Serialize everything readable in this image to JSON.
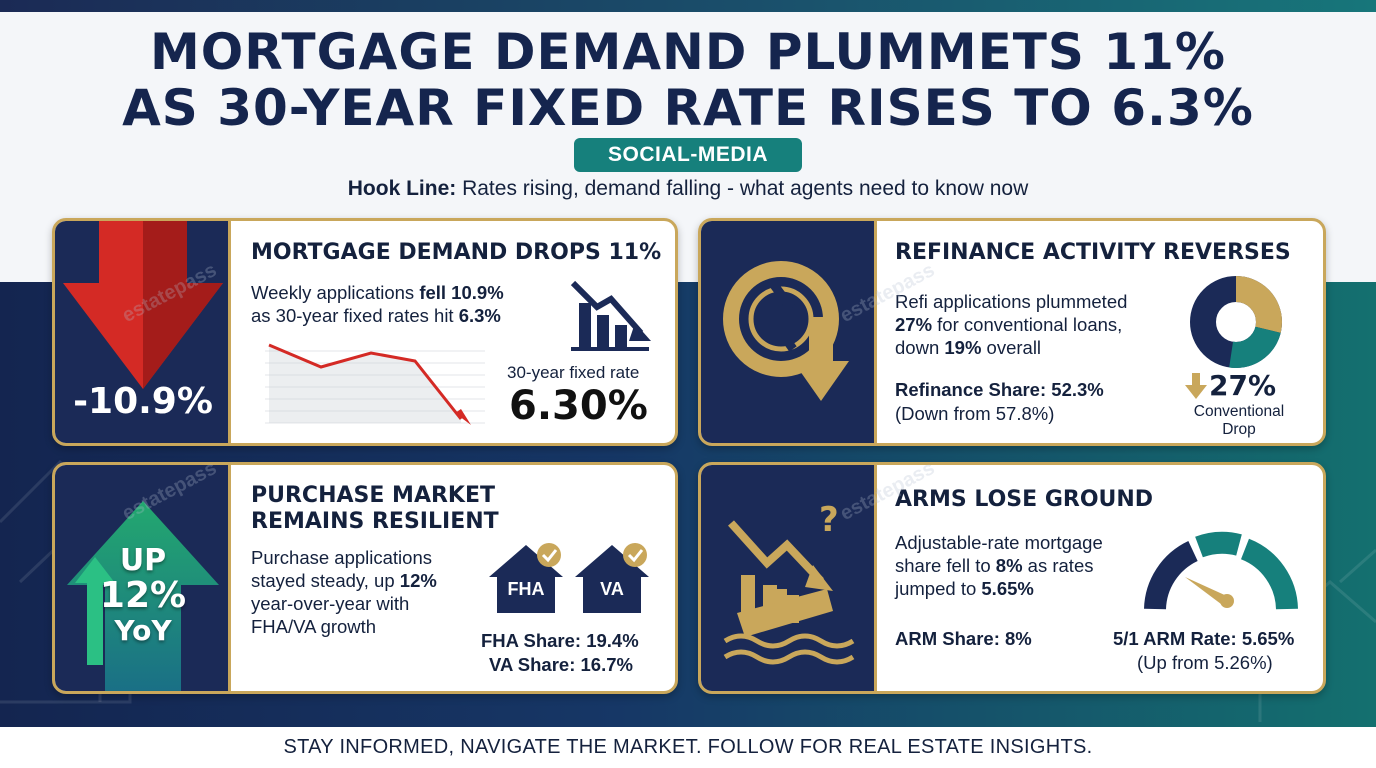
{
  "header": {
    "title_line1": "MORTGAGE DEMAND PLUMMETS 11%",
    "title_line2": "AS 30-YEAR FIXED RATE RISES TO 6.3%",
    "tag": "SOCIAL-MEDIA",
    "hook_label": "Hook Line:",
    "hook_text": " Rates rising, demand falling - what agents need to know now"
  },
  "watermark": "estatepass",
  "colors": {
    "navy": "#1b2a57",
    "gold": "#c9a75b",
    "teal": "#16807c",
    "red": "#d42a25",
    "green": "#1f9a6b"
  },
  "cards": {
    "demand": {
      "title": "MORTGAGE DEMAND DROPS 11%",
      "big_value": "-10.9%",
      "text_a": "Weekly applications ",
      "text_b": "fell 10.9%",
      "text_c": "as 30-year fixed rates hit ",
      "text_d": "6.3%",
      "rate_label": "30-year fixed rate",
      "rate_value": "6.30%",
      "icon": "arrow-down-icon"
    },
    "refinance": {
      "title": "REFINANCE ACTIVITY REVERSES",
      "text_a": "Refi applications plummeted",
      "text_b": "27%",
      "text_c": " for conventional loans,",
      "text_d": "down ",
      "text_e": "19%",
      "text_f": " overall",
      "share_label": "Refinance Share: 52.3%",
      "share_sub": "(Down from 57.8%)",
      "drop_value": "27%",
      "drop_label_1": "Conventional",
      "drop_label_2": "Drop",
      "share_fraction": 0.523,
      "icon": "broken-refresh-icon"
    },
    "purchase": {
      "title_line1": "PURCHASE MARKET",
      "title_line2": "REMAINS RESILIENT",
      "badge_line1": "UP",
      "badge_line2": "12%",
      "badge_line3": "YoY",
      "text_a": "Purchase applications",
      "text_b": "stayed steady, up ",
      "text_c": "12%",
      "text_d": "year-over-year with",
      "text_e": "FHA/VA growth",
      "house1": "FHA",
      "house2": "VA",
      "fha_share": "FHA Share: 19.4%",
      "va_share": "VA Share: 16.7%",
      "icon": "arrow-up-icon"
    },
    "arms": {
      "title": "ARMS LOSE GROUND",
      "text_a": "Adjustable-rate mortgage",
      "text_b": "share fell to ",
      "text_c": "8%",
      "text_d": " as rates",
      "text_e": "jumped to ",
      "text_f": "5.65%",
      "arm_share": "ARM Share: 8%",
      "arm_rate": "5/1 ARM Rate: 5.65%",
      "arm_rate_sub": "(Up from 5.26%)",
      "icon": "sinking-house-icon"
    }
  },
  "footer": "STAY INFORMED, NAVIGATE THE MARKET. FOLLOW FOR REAL ESTATE INSIGHTS."
}
